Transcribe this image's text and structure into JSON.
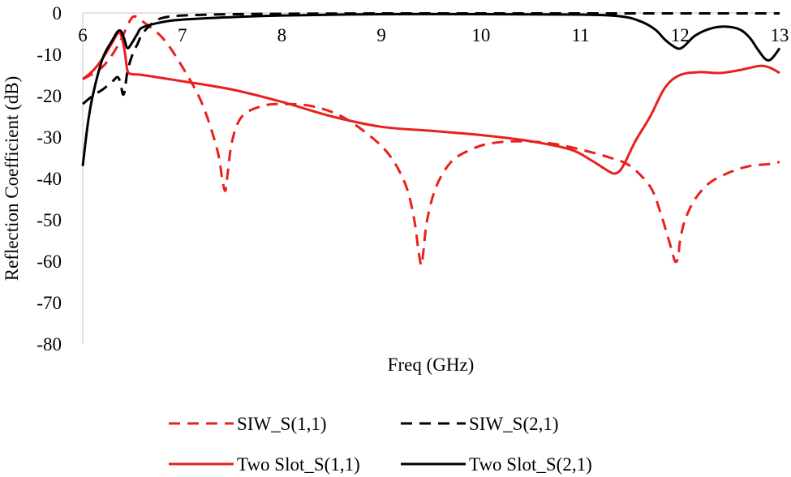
{
  "chart_data": {
    "type": "line",
    "title": "",
    "xlabel": "Freq (GHz)",
    "ylabel": "Reflection Coefficient (dB)",
    "xlim": [
      6,
      13
    ],
    "ylim": [
      -80,
      0
    ],
    "xticks": [
      6,
      7,
      8,
      9,
      10,
      11,
      12,
      13
    ],
    "yticks": [
      0,
      -10,
      -20,
      -30,
      -40,
      -50,
      -60,
      -70,
      -80
    ],
    "grid": false,
    "legend_position": "bottom",
    "series": [
      {
        "name": "SIW_S(1,1)",
        "color": "#e8201e",
        "dash": "dashed",
        "x": [
          6.0,
          6.2,
          6.35,
          6.45,
          6.5,
          6.55,
          6.6,
          6.8,
          7.0,
          7.2,
          7.35,
          7.4,
          7.43,
          7.45,
          7.5,
          7.6,
          7.8,
          8.0,
          8.3,
          8.6,
          8.9,
          9.1,
          9.25,
          9.33,
          9.37,
          9.4,
          9.42,
          9.46,
          9.55,
          9.7,
          9.9,
          10.1,
          10.4,
          10.7,
          11.0,
          11.3,
          11.5,
          11.7,
          11.8,
          11.9,
          11.95,
          11.98,
          12.0,
          12.05,
          12.15,
          12.3,
          12.5,
          12.7,
          12.9,
          13.0
        ],
        "y": [
          -16,
          -13,
          -8,
          -3,
          -1,
          -1,
          -2,
          -6,
          -13,
          -22,
          -33,
          -40,
          -43,
          -40,
          -31,
          -25,
          -22.5,
          -22,
          -22.5,
          -25,
          -30,
          -35,
          -42,
          -50,
          -57,
          -61,
          -58,
          -50,
          -42,
          -36,
          -33,
          -31.5,
          -31,
          -31.5,
          -33,
          -35,
          -37,
          -42,
          -48,
          -56,
          -60,
          -59,
          -55,
          -50,
          -45,
          -41,
          -38.5,
          -37,
          -36.5,
          -36
        ]
      },
      {
        "name": "SIW_S(2,1)",
        "color": "#000000",
        "dash": "dashed",
        "x": [
          6.0,
          6.1,
          6.2,
          6.3,
          6.35,
          6.38,
          6.4,
          6.42,
          6.45,
          6.5,
          6.55,
          6.6,
          6.7,
          6.8,
          7.0,
          7.5,
          8.0,
          9.0,
          10.0,
          11.0,
          12.0,
          13.0
        ],
        "y": [
          -22,
          -20,
          -18.5,
          -16.5,
          -15.5,
          -17,
          -19.5,
          -19,
          -14,
          -10,
          -7.5,
          -5,
          -2.5,
          -1.2,
          -0.6,
          -0.3,
          -0.2,
          -0.1,
          -0.1,
          -0.1,
          -0.1,
          -0.1
        ]
      },
      {
        "name": "Two Slot_S(1,1)",
        "color": "#e8201e",
        "dash": "solid",
        "x": [
          6.0,
          6.1,
          6.2,
          6.3,
          6.35,
          6.38,
          6.42,
          6.45,
          6.5,
          6.6,
          7.0,
          7.5,
          8.0,
          8.5,
          9.0,
          9.5,
          10.0,
          10.5,
          10.9,
          11.1,
          11.2,
          11.3,
          11.35,
          11.4,
          11.45,
          11.55,
          11.7,
          11.85,
          12.0,
          12.2,
          12.4,
          12.6,
          12.8,
          12.9,
          13.0
        ],
        "y": [
          -16,
          -14,
          -11,
          -7,
          -5,
          -5,
          -9,
          -14,
          -14.8,
          -15,
          -16.5,
          -18.5,
          -21.5,
          -25,
          -27.5,
          -28.5,
          -29.5,
          -31,
          -33,
          -35.5,
          -37,
          -38.5,
          -38.8,
          -38,
          -36,
          -31,
          -25,
          -18,
          -15,
          -14.3,
          -14.5,
          -13.8,
          -12.8,
          -13.2,
          -14.5
        ]
      },
      {
        "name": "Two Slot_S(2,1)",
        "color": "#000000",
        "dash": "solid",
        "x": [
          6.0,
          6.05,
          6.1,
          6.2,
          6.3,
          6.35,
          6.38,
          6.4,
          6.42,
          6.45,
          6.5,
          6.55,
          6.6,
          6.8,
          7.0,
          7.5,
          8.0,
          9.0,
          10.0,
          11.0,
          11.4,
          11.6,
          11.75,
          11.85,
          11.95,
          12.0,
          12.05,
          12.15,
          12.3,
          12.45,
          12.6,
          12.7,
          12.78,
          12.85,
          12.9,
          12.95,
          13.0
        ],
        "y": [
          -37,
          -27,
          -20,
          -11,
          -6.5,
          -4.5,
          -4.3,
          -5.2,
          -6.5,
          -8.5,
          -7,
          -5,
          -3.5,
          -2.2,
          -1.6,
          -1.0,
          -0.6,
          -0.3,
          -0.3,
          -0.4,
          -0.8,
          -2,
          -4,
          -6.5,
          -8.3,
          -8.6,
          -7.8,
          -5.5,
          -3.8,
          -3.3,
          -4,
          -6,
          -8.8,
          -11,
          -11.4,
          -10.2,
          -8.5
        ]
      }
    ]
  }
}
